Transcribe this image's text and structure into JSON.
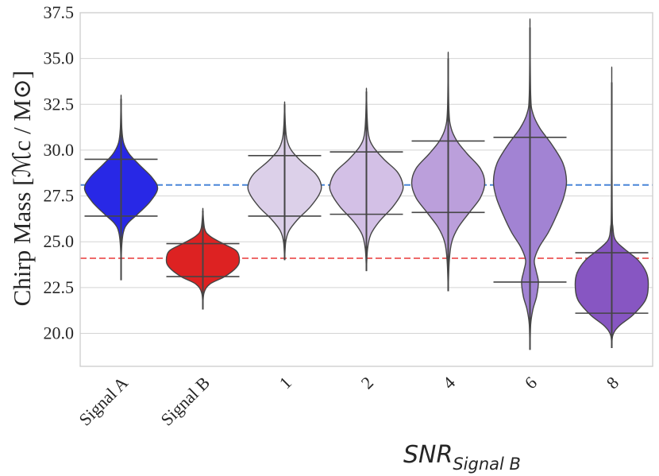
{
  "chart_data": {
    "type": "violin",
    "ylabel": "Chirp Mass [ℳc / M⊙]",
    "xlabel": "SNR_Signal B",
    "xlabel_main": "SNR",
    "xlabel_sub": "Signal B",
    "ylim": [
      18.2,
      37.5
    ],
    "yticks": [
      "20.0",
      "22.5",
      "25.0",
      "27.5",
      "30.0",
      "32.5",
      "35.0",
      "37.5"
    ],
    "grid": true,
    "reference_lines": [
      {
        "value": 28.1,
        "color": "#4a86d8",
        "style": "dashed"
      },
      {
        "value": 24.1,
        "color": "#ee6a6a",
        "style": "dashed"
      }
    ],
    "categories": [
      "Signal A",
      "Signal B",
      "1",
      "2",
      "4",
      "6",
      "8"
    ],
    "violins": [
      {
        "category": "Signal A",
        "color": "#2828e6",
        "min": 22.9,
        "max": 32.8,
        "q_low": 26.4,
        "q_high": 29.5,
        "profile": [
          [
            22.9,
            0
          ],
          [
            24.5,
            0.01
          ],
          [
            25.5,
            0.06
          ],
          [
            26.0,
            0.18
          ],
          [
            26.5,
            0.45
          ],
          [
            27.2,
            0.8
          ],
          [
            27.9,
            1.0
          ],
          [
            28.5,
            0.85
          ],
          [
            29.2,
            0.5
          ],
          [
            29.8,
            0.22
          ],
          [
            30.4,
            0.07
          ],
          [
            31.2,
            0.02
          ],
          [
            32.8,
            0
          ]
        ]
      },
      {
        "category": "Signal B",
        "color": "#dd2222",
        "min": 21.3,
        "max": 26.7,
        "q_low": 23.1,
        "q_high": 24.9,
        "profile": [
          [
            21.3,
            0
          ],
          [
            22.2,
            0.03
          ],
          [
            22.7,
            0.2
          ],
          [
            23.1,
            0.6
          ],
          [
            23.6,
            0.92
          ],
          [
            24.0,
            1.0
          ],
          [
            24.5,
            0.92
          ],
          [
            24.9,
            0.55
          ],
          [
            25.3,
            0.2
          ],
          [
            25.7,
            0.05
          ],
          [
            26.7,
            0
          ]
        ]
      },
      {
        "category": "1",
        "color": "#dcd0e9",
        "min": 24.0,
        "max": 32.5,
        "q_low": 26.4,
        "q_high": 29.7,
        "profile": [
          [
            24.0,
            0
          ],
          [
            25.0,
            0.03
          ],
          [
            25.6,
            0.12
          ],
          [
            26.2,
            0.35
          ],
          [
            26.9,
            0.7
          ],
          [
            27.6,
            0.95
          ],
          [
            28.1,
            1.0
          ],
          [
            28.7,
            0.85
          ],
          [
            29.4,
            0.45
          ],
          [
            30.0,
            0.18
          ],
          [
            30.6,
            0.06
          ],
          [
            31.4,
            0.02
          ],
          [
            32.5,
            0
          ]
        ]
      },
      {
        "category": "2",
        "color": "#d3c0e6",
        "min": 23.4,
        "max": 33.2,
        "q_low": 26.5,
        "q_high": 29.9,
        "profile": [
          [
            23.4,
            0
          ],
          [
            24.6,
            0.03
          ],
          [
            25.4,
            0.12
          ],
          [
            26.1,
            0.35
          ],
          [
            26.9,
            0.72
          ],
          [
            27.6,
            0.95
          ],
          [
            28.1,
            1.0
          ],
          [
            28.8,
            0.85
          ],
          [
            29.5,
            0.48
          ],
          [
            30.2,
            0.18
          ],
          [
            30.8,
            0.06
          ],
          [
            31.8,
            0.02
          ],
          [
            33.2,
            0
          ]
        ]
      },
      {
        "category": "4",
        "color": "#bb9fdb",
        "min": 22.3,
        "max": 35.0,
        "q_low": 26.6,
        "q_high": 30.5,
        "profile": [
          [
            22.3,
            0
          ],
          [
            24.0,
            0.03
          ],
          [
            25.0,
            0.1
          ],
          [
            25.8,
            0.28
          ],
          [
            26.6,
            0.58
          ],
          [
            27.4,
            0.88
          ],
          [
            28.2,
            1.0
          ],
          [
            29.0,
            0.88
          ],
          [
            29.8,
            0.52
          ],
          [
            30.5,
            0.24
          ],
          [
            31.2,
            0.08
          ],
          [
            32.2,
            0.02
          ],
          [
            35.0,
            0
          ]
        ]
      },
      {
        "category": "6",
        "color": "#a283d3",
        "min": 19.1,
        "max": 36.7,
        "q_low": 22.8,
        "q_high": 30.7,
        "profile": [
          [
            19.1,
            0
          ],
          [
            20.5,
            0.02
          ],
          [
            21.3,
            0.08
          ],
          [
            22.0,
            0.18
          ],
          [
            22.8,
            0.23
          ],
          [
            23.4,
            0.17
          ],
          [
            24.0,
            0.12
          ],
          [
            24.7,
            0.25
          ],
          [
            25.5,
            0.5
          ],
          [
            26.4,
            0.72
          ],
          [
            27.4,
            0.92
          ],
          [
            28.3,
            1.0
          ],
          [
            29.3,
            0.9
          ],
          [
            30.3,
            0.6
          ],
          [
            31.2,
            0.27
          ],
          [
            32.0,
            0.08
          ],
          [
            33.0,
            0.02
          ],
          [
            36.7,
            0
          ]
        ]
      },
      {
        "category": "8",
        "color": "#8756c2",
        "min": 19.2,
        "max": 33.7,
        "q_low": 21.1,
        "q_high": 24.4,
        "profile": [
          [
            19.2,
            0
          ],
          [
            19.9,
            0.03
          ],
          [
            20.4,
            0.2
          ],
          [
            21.0,
            0.58
          ],
          [
            21.8,
            0.92
          ],
          [
            22.6,
            1.0
          ],
          [
            23.3,
            0.95
          ],
          [
            24.0,
            0.72
          ],
          [
            24.6,
            0.35
          ],
          [
            25.1,
            0.1
          ],
          [
            25.8,
            0.03
          ],
          [
            27.0,
            0.01
          ],
          [
            33.7,
            0
          ]
        ]
      }
    ]
  }
}
